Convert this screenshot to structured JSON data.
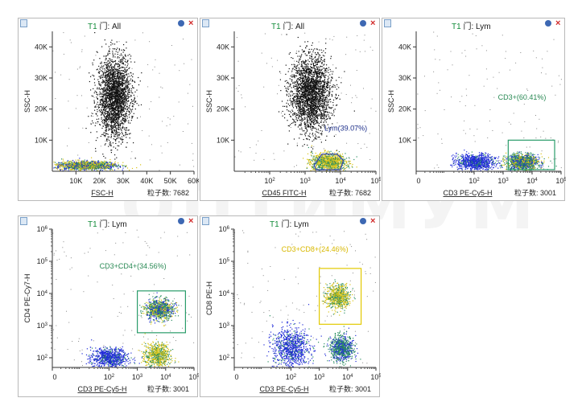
{
  "watermark": "ОПТИМУМ",
  "panels": [
    {
      "id": "p1",
      "gate_prefix": "T1",
      "gate_char": "门",
      "gate_name": ": All",
      "xlabel": "FSC-H",
      "ylabel": "SSC-H",
      "count_label": "粒子数: 7682",
      "x_scale": "linear",
      "y_scale": "linear",
      "x_ticks": [
        "10K",
        "20K",
        "30K",
        "40K",
        "50K",
        "60K"
      ],
      "y_ticks": [
        "10K",
        "20K",
        "30K",
        "40K"
      ],
      "gate_text": "",
      "gate_text_color": "#2a8a55",
      "chart_data": {
        "type": "scatter",
        "xlabel": "FSC-H",
        "ylabel": "SSC-H",
        "xlim": [
          0,
          60000
        ],
        "ylim": [
          0,
          45000
        ],
        "populations": [
          {
            "name": "",
            "center": [
              26000,
              24000
            ],
            "spread": [
              3500,
              6500
            ],
            "n": 2400
          },
          {
            "name": "",
            "center": [
              14000,
              2000
            ],
            "spread": [
              6500,
              700
            ],
            "n": 1400
          }
        ]
      }
    },
    {
      "id": "p2",
      "gate_prefix": "T1",
      "gate_char": "门",
      "gate_name": ": All",
      "xlabel": "CD45 FITC-H",
      "ylabel": "SSC-H",
      "count_label": "粒子数: 7682",
      "x_scale": "log",
      "y_scale": "linear",
      "x_ticks": [
        "10^2",
        "10^3",
        "10^4",
        "10^5"
      ],
      "y_ticks": [
        "10K",
        "20K",
        "30K",
        "40K"
      ],
      "gate_text": "Lym(39.07%)",
      "gate_text_color": "#1c2e8a",
      "chart_data": {
        "type": "scatter",
        "xlabel": "CD45 FITC-H",
        "ylabel": "SSC-H",
        "xlim": [
          10,
          100000
        ],
        "ylim": [
          0,
          45000
        ],
        "populations": [
          {
            "name": "",
            "center": [
              1400,
              25000
            ],
            "spread": [
              0.18,
              6000
            ],
            "n": 2400
          },
          {
            "name": "Lym(39.07%)",
            "center": [
              4500,
              3000
            ],
            "spread": [
              0.15,
              1500
            ],
            "n": 1100
          }
        ]
      }
    },
    {
      "id": "p3",
      "gate_prefix": "T1",
      "gate_char": "门",
      "gate_name": ": Lym",
      "xlabel": "CD3 PE-Cy5-H",
      "ylabel": "SSC-H",
      "count_label": "粒子数: 3001",
      "x_scale": "log",
      "y_scale": "linear",
      "x_ticks": [
        "0",
        "10^2",
        "10^3",
        "10^4",
        "10^5"
      ],
      "y_ticks": [
        "10K",
        "20K",
        "30K",
        "40K"
      ],
      "gate_text": "CD3+(60.41%)",
      "gate_text_color": "#2a8a55",
      "chart_data": {
        "type": "scatter",
        "xlabel": "CD3 PE-Cy5-H",
        "ylabel": "SSC-H",
        "xlim": [
          1,
          100000
        ],
        "ylim": [
          0,
          45000
        ],
        "populations": [
          {
            "name": "",
            "center": [
              110,
              3000
            ],
            "spread": [
              0.2,
              1300
            ],
            "n": 900
          },
          {
            "name": "CD3+(60.41%)",
            "center": [
              4500,
              3000
            ],
            "spread": [
              0.17,
              1300
            ],
            "n": 1300
          }
        ]
      }
    },
    {
      "id": "p4",
      "gate_prefix": "T1",
      "gate_char": "门",
      "gate_name": ": Lym",
      "xlabel": "CD3 PE-Cy5-H",
      "ylabel": "CD4 PE-Cy7-H",
      "count_label": "粒子数: 3001",
      "x_scale": "log",
      "y_scale": "log",
      "x_ticks": [
        "0",
        "10^2",
        "10^3",
        "10^4",
        "10^5"
      ],
      "y_ticks": [
        "10^2",
        "10^3",
        "10^4",
        "10^5",
        "10^6"
      ],
      "gate_text": "CD3+CD4+(34.56%)",
      "gate_text_color": "#2a8a55",
      "chart_data": {
        "type": "scatter",
        "xlabel": "CD3 PE-Cy5-H",
        "ylabel": "CD4 PE-Cy7-H",
        "xlim": [
          1,
          100000
        ],
        "ylim": [
          50,
          1000000
        ],
        "populations": [
          {
            "name": "",
            "center": [
              100,
              100
            ],
            "spread": [
              0.2,
              0.1
            ],
            "n": 800
          },
          {
            "name": "CD3+CD4+(34.56%)",
            "center": [
              6000,
              3200
            ],
            "spread": [
              0.15,
              0.1
            ],
            "n": 900
          },
          {
            "name": "",
            "center": [
              5000,
              120
            ],
            "spread": [
              0.14,
              0.12
            ],
            "n": 700
          }
        ]
      }
    },
    {
      "id": "p5",
      "gate_prefix": "T1",
      "gate_char": "门",
      "gate_name": ": Lym",
      "xlabel": "CD3 PE-Cy5-H",
      "ylabel": "CD8 PE-H",
      "count_label": "粒子数: 3001",
      "x_scale": "log",
      "y_scale": "log",
      "x_ticks": [
        "0",
        "10^2",
        "10^3",
        "10^4",
        "10^5"
      ],
      "y_ticks": [
        "10^2",
        "10^3",
        "10^4",
        "10^5",
        "10^6"
      ],
      "gate_text": "CD3+CD8+(24.46%)",
      "gate_text_color": "#d8b800",
      "chart_data": {
        "type": "scatter",
        "xlabel": "CD3 PE-Cy5-H",
        "ylabel": "CD8 PE-H",
        "xlim": [
          1,
          100000
        ],
        "ylim": [
          50,
          1000000
        ],
        "populations": [
          {
            "name": "",
            "center": [
              100,
              200
            ],
            "spread": [
              0.2,
              0.2
            ],
            "n": 900
          },
          {
            "name": "CD3+CD8+(24.46%)",
            "center": [
              4500,
              8000
            ],
            "spread": [
              0.13,
              0.12
            ],
            "n": 700
          },
          {
            "name": "",
            "center": [
              6000,
              200
            ],
            "spread": [
              0.13,
              0.12
            ],
            "n": 800
          }
        ]
      }
    }
  ],
  "colors": {
    "blue": "#1f2ad8",
    "green": "#2b8e61",
    "yellow": "#d9c316",
    "black": "#111111",
    "gate_green": "#2a9c6a",
    "gate_yellow": "#e2c900",
    "gate_blue": "#3040b0"
  }
}
